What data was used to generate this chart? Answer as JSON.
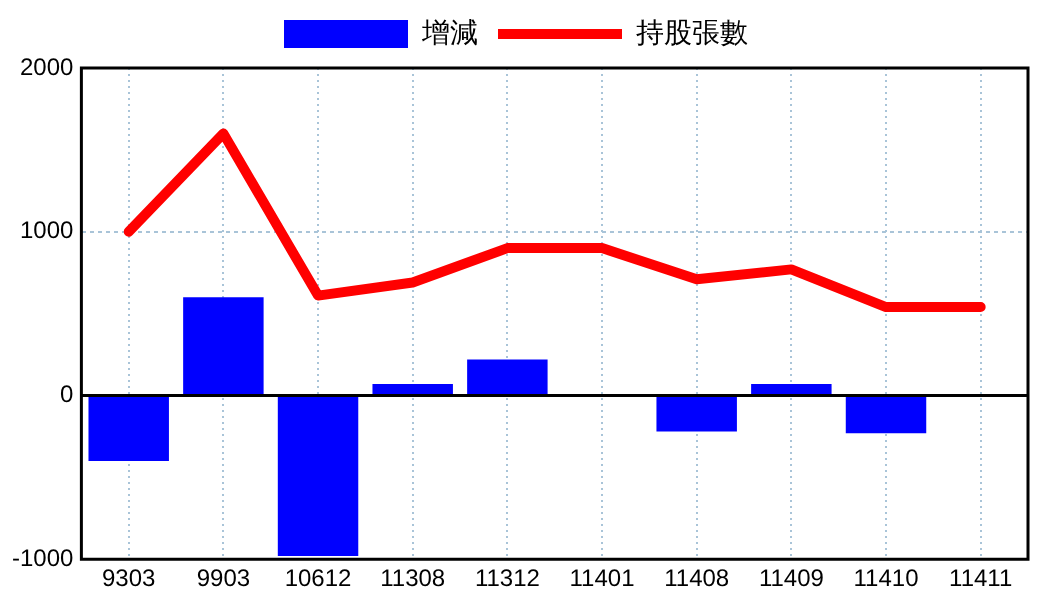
{
  "chart_data": {
    "type": "bar",
    "categories": [
      "9303",
      "9903",
      "10612",
      "11308",
      "11312",
      "11401",
      "11408",
      "11409",
      "11410",
      "11411"
    ],
    "series": [
      {
        "name": "增減",
        "color": "#0000ff",
        "values": [
          -400,
          600,
          -980,
          70,
          220,
          0,
          -220,
          70,
          -230,
          null
        ]
      },
      {
        "name": "持股張數",
        "type": "line",
        "color": "#ff0000",
        "values": [
          1000,
          1600,
          610,
          690,
          900,
          900,
          710,
          770,
          540,
          540
        ]
      }
    ],
    "ylim": [
      -1000,
      2000
    ],
    "yticks": [
      -1000,
      0,
      1000,
      2000
    ],
    "grid": true,
    "legend": "top",
    "marker": "none",
    "line_style": "solid"
  }
}
